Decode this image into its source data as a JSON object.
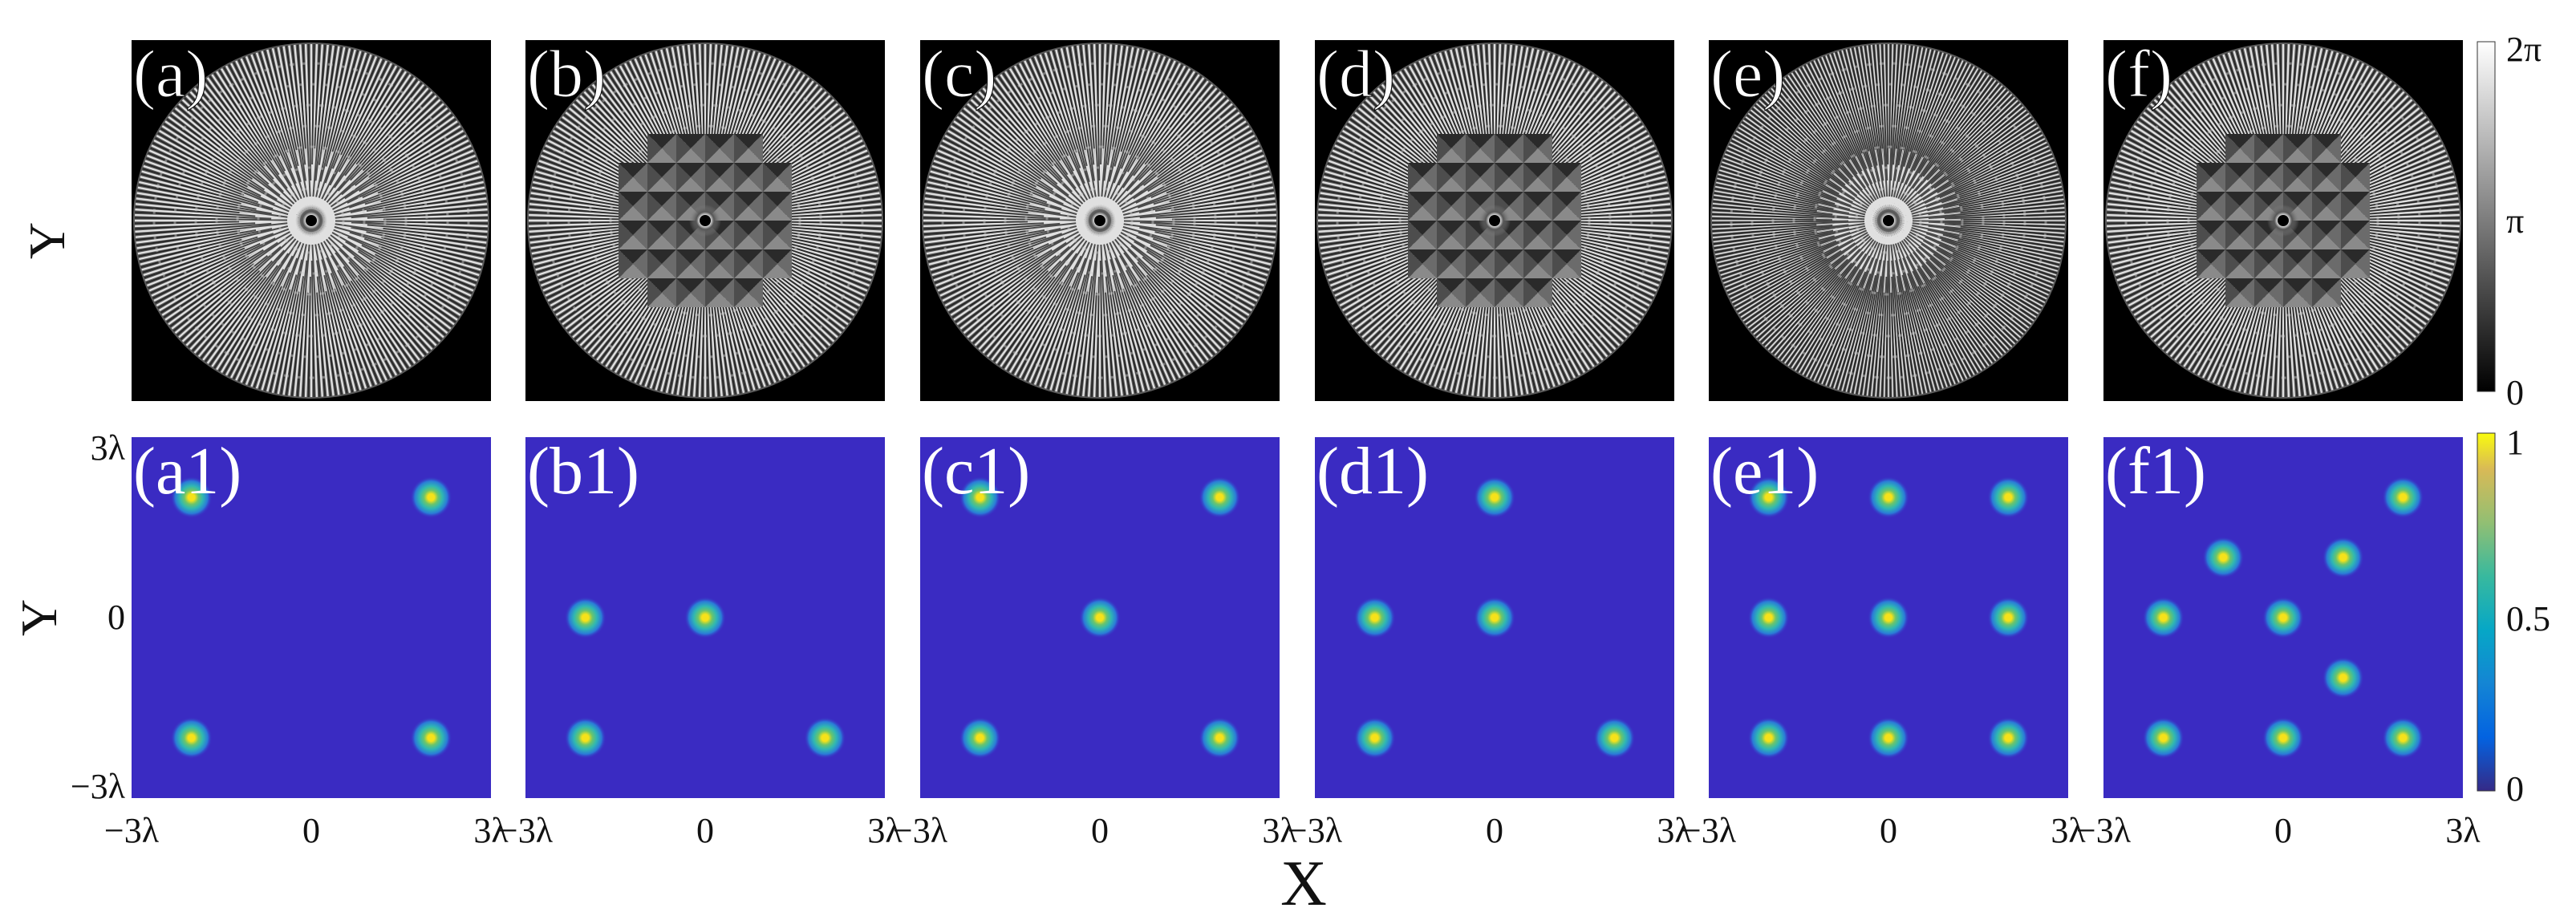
{
  "figure": {
    "axis_y_label": "Y",
    "axis_x_label": "X",
    "top_row": {
      "panel_labels": [
        "(a)",
        "(b)",
        "(c)",
        "(d)",
        "(e)",
        "(f)"
      ],
      "content": "phase masks (grayscale radial patterns)"
    },
    "bottom_row": {
      "panel_labels": [
        "(a1)",
        "(b1)",
        "(c1)",
        "(d1)",
        "(e1)",
        "(f1)"
      ],
      "y_ticks": [
        "3λ",
        "0",
        "−3λ"
      ],
      "x_ticks": [
        "−3λ",
        "0",
        "3λ"
      ]
    },
    "phase_colorbar": {
      "ticks": [
        "2π",
        "π",
        "0"
      ]
    },
    "intensity_colorbar": {
      "ticks": [
        "1",
        "0.5",
        "0"
      ],
      "colormap": "parula"
    },
    "colors": {
      "background_blue": "#3a2bc2",
      "spot_core": "#f6e21a",
      "spot_mid": "#2fb7b3"
    }
  },
  "chart_data": {
    "type": "scatter",
    "x_unit": "λ",
    "y_unit": "λ",
    "xlim": [
      -3,
      3
    ],
    "ylim": [
      -3,
      3
    ],
    "panels": [
      {
        "label": "(a1)",
        "points": [
          [
            -2,
            2
          ],
          [
            2,
            2
          ],
          [
            -2,
            -2
          ],
          [
            2,
            -2
          ]
        ]
      },
      {
        "label": "(b1)",
        "points": [
          [
            -2,
            0
          ],
          [
            0,
            0
          ],
          [
            -2,
            -2
          ],
          [
            2,
            -2
          ]
        ]
      },
      {
        "label": "(c1)",
        "points": [
          [
            -2,
            2
          ],
          [
            2,
            2
          ],
          [
            0,
            0
          ],
          [
            -2,
            -2
          ],
          [
            2,
            -2
          ]
        ]
      },
      {
        "label": "(d1)",
        "points": [
          [
            0,
            2
          ],
          [
            -2,
            0
          ],
          [
            0,
            0
          ],
          [
            -2,
            -2
          ],
          [
            2,
            -2
          ]
        ]
      },
      {
        "label": "(e1)",
        "points": [
          [
            -2,
            2
          ],
          [
            0,
            2
          ],
          [
            2,
            2
          ],
          [
            -2,
            0
          ],
          [
            0,
            0
          ],
          [
            2,
            0
          ],
          [
            -2,
            -2
          ],
          [
            0,
            -2
          ],
          [
            2,
            -2
          ]
        ]
      },
      {
        "label": "(f1)",
        "points": [
          [
            2,
            2
          ],
          [
            -1,
            1
          ],
          [
            1,
            1
          ],
          [
            -2,
            0
          ],
          [
            0,
            0
          ],
          [
            1,
            -1
          ],
          [
            -2,
            -2
          ],
          [
            0,
            -2
          ],
          [
            2,
            -2
          ]
        ]
      }
    ]
  }
}
